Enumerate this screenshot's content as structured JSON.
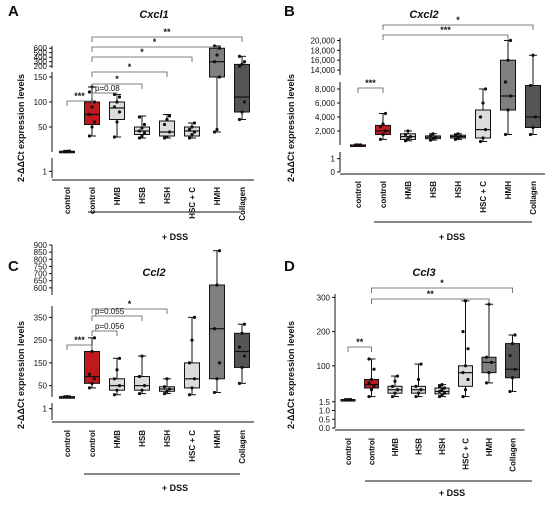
{
  "chart_data": [
    {
      "panel": "A",
      "type": "box",
      "title": "Cxcl1",
      "ylabel": "2-ΔΔCt expression levels",
      "group_label": "+ DSS",
      "categories": [
        "control",
        "control",
        "HMB",
        "HSB",
        "HSH",
        "HSC + C",
        "HMH",
        "Collagen"
      ],
      "colors": [
        "#c0181c",
        "#c0181c",
        "#dcdcdc",
        "#dcdcdc",
        "#dcdcdc",
        "#dcdcdc",
        "#7f7f7f",
        "#555555"
      ],
      "axis_segments": [
        {
          "min": 0,
          "max": 3,
          "ticks": [
            1
          ],
          "tick_labels": [
            "1"
          ]
        },
        {
          "min": 0,
          "max": 160,
          "ticks": [
            50,
            100,
            150
          ],
          "tick_labels": [
            "50",
            "100",
            "150"
          ]
        },
        {
          "min": 160,
          "max": 650,
          "ticks": [
            200,
            300,
            400,
            500,
            600
          ],
          "tick_labels": [
            "200",
            "300",
            "400",
            "500",
            "600"
          ]
        }
      ],
      "boxes": [
        {
          "min": 0.4,
          "q1": 0.8,
          "median": 1.0,
          "q3": 1.4,
          "max": 1.8,
          "points": [
            0.5,
            0.8,
            1.0,
            1.2,
            1.6,
            1.8
          ]
        },
        {
          "min": 32,
          "q1": 55,
          "median": 75,
          "q3": 100,
          "max": 130,
          "points": [
            32,
            50,
            60,
            75,
            90,
            100,
            120,
            130
          ]
        },
        {
          "min": 30,
          "q1": 65,
          "median": 88,
          "q3": 100,
          "max": 115,
          "points": [
            30,
            60,
            80,
            90,
            100,
            110,
            115
          ]
        },
        {
          "min": 28,
          "q1": 35,
          "median": 42,
          "q3": 50,
          "max": 72,
          "points": [
            28,
            32,
            38,
            42,
            48,
            55,
            70
          ]
        },
        {
          "min": 28,
          "q1": 32,
          "median": 40,
          "q3": 62,
          "max": 75,
          "points": [
            28,
            30,
            40,
            55,
            65,
            72
          ]
        },
        {
          "min": 28,
          "q1": 32,
          "median": 42,
          "q3": 50,
          "max": 58,
          "points": [
            28,
            35,
            40,
            45,
            50,
            58
          ]
        },
        {
          "min": 40,
          "q1": 150,
          "median": 300,
          "q3": 600,
          "max": 650,
          "points": [
            40,
            45,
            150,
            300,
            450,
            600,
            650
          ]
        },
        {
          "min": 65,
          "q1": 80,
          "median": 110,
          "q3": 240,
          "max": 420,
          "points": [
            65,
            80,
            100,
            200,
            240,
            300,
            420
          ]
        }
      ],
      "annotations": [
        {
          "from": 0,
          "to": 1,
          "label": "***"
        },
        {
          "from": 1,
          "to": 2,
          "label": "p=0.08"
        },
        {
          "from": 1,
          "to": 3,
          "label": "*"
        },
        {
          "from": 1,
          "to": 4,
          "label": "*"
        },
        {
          "from": 1,
          "to": 5,
          "label": "*"
        },
        {
          "from": 1,
          "to": 6,
          "label": "*"
        },
        {
          "from": 1,
          "to": 7,
          "label": "**"
        }
      ]
    },
    {
      "panel": "B",
      "type": "box",
      "title": "Cxcl2",
      "ylabel": "2-ΔΔCt expression levels",
      "group_label": "+ DSS",
      "categories": [
        "control",
        "control",
        "HMB",
        "HSB",
        "HSH",
        "HSC + C",
        "HMH",
        "Collagen"
      ],
      "colors": [
        "#c0181c",
        "#c0181c",
        "#dcdcdc",
        "#dcdcdc",
        "#dcdcdc",
        "#dcdcdc",
        "#7f7f7f",
        "#555555"
      ],
      "axis_segments": [
        {
          "min": 0,
          "max": 1.5,
          "ticks": [
            0,
            1
          ],
          "tick_labels": [
            "0",
            "1"
          ]
        },
        {
          "min": 0,
          "max": 9000,
          "ticks": [
            2000,
            4000,
            6000,
            8000
          ],
          "tick_labels": [
            "2,000",
            "4,000",
            "6,000",
            "8,000"
          ]
        },
        {
          "min": 13000,
          "max": 20500,
          "ticks": [
            14000,
            16000,
            18000,
            20000
          ],
          "tick_labels": [
            "14,000",
            "16,000",
            "18,000",
            "20,000"
          ]
        }
      ],
      "boxes": [
        {
          "min": 0.5,
          "q1": 0.7,
          "median": 0.9,
          "q3": 1.1,
          "max": 1.3,
          "points": [
            0.5,
            0.7,
            0.9,
            1.0,
            1.2,
            1.3
          ]
        },
        {
          "min": 800,
          "q1": 1500,
          "median": 2000,
          "q3": 2800,
          "max": 4500,
          "points": [
            800,
            1500,
            2000,
            2600,
            3000,
            4500
          ]
        },
        {
          "min": 600,
          "q1": 800,
          "median": 1200,
          "q3": 1600,
          "max": 2000,
          "points": [
            600,
            900,
            1200,
            1500,
            2000
          ]
        },
        {
          "min": 700,
          "q1": 900,
          "median": 1100,
          "q3": 1300,
          "max": 1600,
          "points": [
            700,
            900,
            1100,
            1300,
            1600
          ]
        },
        {
          "min": 800,
          "q1": 1000,
          "median": 1200,
          "q3": 1400,
          "max": 1600,
          "points": [
            800,
            1000,
            1200,
            1400,
            1600
          ]
        },
        {
          "min": 500,
          "q1": 1000,
          "median": 2200,
          "q3": 5000,
          "max": 8000,
          "points": [
            500,
            1000,
            2200,
            4000,
            6000,
            8000
          ]
        },
        {
          "min": 1500,
          "q1": 5000,
          "median": 7000,
          "q3": 16000,
          "max": 20000,
          "points": [
            1500,
            5000,
            7000,
            9000,
            16000,
            20000
          ]
        },
        {
          "min": 1500,
          "q1": 2500,
          "median": 4000,
          "q3": 8500,
          "max": 17000,
          "points": [
            1500,
            2500,
            4000,
            8500,
            17000
          ]
        }
      ],
      "annotations": [
        {
          "from": 0,
          "to": 1,
          "label": "***"
        },
        {
          "from": 1,
          "to": 6,
          "label": "***"
        },
        {
          "from": 1,
          "to": 7,
          "label": "*"
        }
      ]
    },
    {
      "panel": "C",
      "type": "box",
      "title": "Ccl2",
      "ylabel": "2-ΔΔCt expression levels",
      "group_label": "+ DSS",
      "categories": [
        "control",
        "control",
        "HMB",
        "HSB",
        "HSH",
        "HSC + C",
        "HMH",
        "Collagen"
      ],
      "colors": [
        "#c0181c",
        "#c0181c",
        "#dcdcdc",
        "#dcdcdc",
        "#dcdcdc",
        "#dcdcdc",
        "#7f7f7f",
        "#555555"
      ],
      "axis_segments": [
        {
          "min": 0,
          "max": 1.5,
          "ticks": [
            1
          ],
          "tick_labels": [
            "1"
          ]
        },
        {
          "min": 0,
          "max": 400,
          "ticks": [
            50,
            150,
            250,
            350
          ],
          "tick_labels": [
            "50",
            "150",
            "250",
            "350"
          ]
        },
        {
          "min": 550,
          "max": 900,
          "ticks": [
            600,
            650,
            700,
            750,
            800,
            850,
            900
          ],
          "tick_labels": [
            "600",
            "650",
            "700",
            "750",
            "800",
            "850",
            "900"
          ]
        }
      ],
      "boxes": [
        {
          "min": 0.85,
          "q1": 0.95,
          "median": 1.0,
          "q3": 1.05,
          "max": 1.15,
          "points": [
            0.85,
            0.95,
            1.0,
            1.05,
            1.15
          ]
        },
        {
          "min": 40,
          "q1": 60,
          "median": 90,
          "q3": 200,
          "max": 260,
          "points": [
            40,
            60,
            80,
            100,
            200,
            260
          ]
        },
        {
          "min": 10,
          "q1": 30,
          "median": 50,
          "q3": 80,
          "max": 170,
          "points": [
            10,
            30,
            50,
            80,
            120,
            170
          ]
        },
        {
          "min": 15,
          "q1": 30,
          "median": 50,
          "q3": 90,
          "max": 180,
          "points": [
            15,
            30,
            50,
            90,
            180
          ]
        },
        {
          "min": 15,
          "q1": 25,
          "median": 35,
          "q3": 45,
          "max": 80,
          "points": [
            15,
            25,
            35,
            45,
            80
          ]
        },
        {
          "min": 10,
          "q1": 40,
          "median": 80,
          "q3": 150,
          "max": 350,
          "points": [
            10,
            40,
            80,
            150,
            250,
            350
          ]
        },
        {
          "min": 20,
          "q1": 80,
          "median": 300,
          "q3": 620,
          "max": 860,
          "points": [
            20,
            80,
            150,
            300,
            620,
            860
          ]
        },
        {
          "min": 60,
          "q1": 130,
          "median": 200,
          "q3": 280,
          "max": 320,
          "points": [
            60,
            130,
            180,
            220,
            280,
            320
          ]
        }
      ],
      "annotations": [
        {
          "from": 0,
          "to": 1,
          "label": "***"
        },
        {
          "from": 1,
          "to": 2,
          "label": "p=0.056"
        },
        {
          "from": 1,
          "to": 3,
          "label": "p=0.055"
        },
        {
          "from": 1,
          "to": 4,
          "label": "*"
        }
      ]
    },
    {
      "panel": "D",
      "type": "box",
      "title": "Ccl3",
      "ylabel": "2-ΔΔCt expression levels",
      "group_label": "+ DSS",
      "categories": [
        "control",
        "control",
        "HMB",
        "HSB",
        "HSH",
        "HSC + C",
        "HMH",
        "Collagen"
      ],
      "colors": [
        "#c0181c",
        "#c0181c",
        "#dcdcdc",
        "#dcdcdc",
        "#dcdcdc",
        "#dcdcdc",
        "#7f7f7f",
        "#555555"
      ],
      "axis_segments": [
        {
          "min": 0,
          "max": 1.6,
          "ticks": [
            0,
            0.5,
            1.0,
            1.5
          ],
          "tick_labels": [
            "0.0",
            "0.5",
            "1.0",
            "1.5"
          ]
        },
        {
          "min": 0,
          "max": 310,
          "ticks": [
            100,
            200,
            300
          ],
          "tick_labels": [
            "100",
            "200",
            "300"
          ]
        }
      ],
      "boxes": [
        {
          "min": 0.3,
          "q1": 0.6,
          "median": 0.9,
          "q3": 1.2,
          "max": 1.5,
          "points": [
            0.3,
            0.6,
            0.9,
            1.1,
            1.3,
            1.5
          ]
        },
        {
          "min": 10,
          "q1": 35,
          "median": 45,
          "q3": 60,
          "max": 120,
          "points": [
            10,
            30,
            40,
            50,
            60,
            90,
            120
          ]
        },
        {
          "min": 10,
          "q1": 20,
          "median": 30,
          "q3": 40,
          "max": 70,
          "points": [
            10,
            20,
            30,
            40,
            55,
            70
          ]
        },
        {
          "min": 10,
          "q1": 20,
          "median": 30,
          "q3": 40,
          "max": 105,
          "points": [
            10,
            20,
            30,
            40,
            60,
            105
          ]
        },
        {
          "min": 10,
          "q1": 18,
          "median": 25,
          "q3": 35,
          "max": 45,
          "points": [
            10,
            15,
            20,
            25,
            30,
            35,
            40,
            45
          ]
        },
        {
          "min": 10,
          "q1": 40,
          "median": 80,
          "q3": 100,
          "max": 290,
          "points": [
            10,
            30,
            60,
            80,
            100,
            150,
            200,
            290
          ]
        },
        {
          "min": 50,
          "q1": 80,
          "median": 110,
          "q3": 125,
          "max": 280,
          "points": [
            50,
            80,
            110,
            125,
            280
          ]
        },
        {
          "min": 25,
          "q1": 65,
          "median": 90,
          "q3": 165,
          "max": 190,
          "points": [
            25,
            65,
            90,
            130,
            165,
            190
          ]
        }
      ],
      "annotations": [
        {
          "from": 0,
          "to": 1,
          "label": "**"
        },
        {
          "from": 1,
          "to": 6,
          "label": "**"
        },
        {
          "from": 1,
          "to": 7,
          "label": "*"
        }
      ]
    }
  ]
}
